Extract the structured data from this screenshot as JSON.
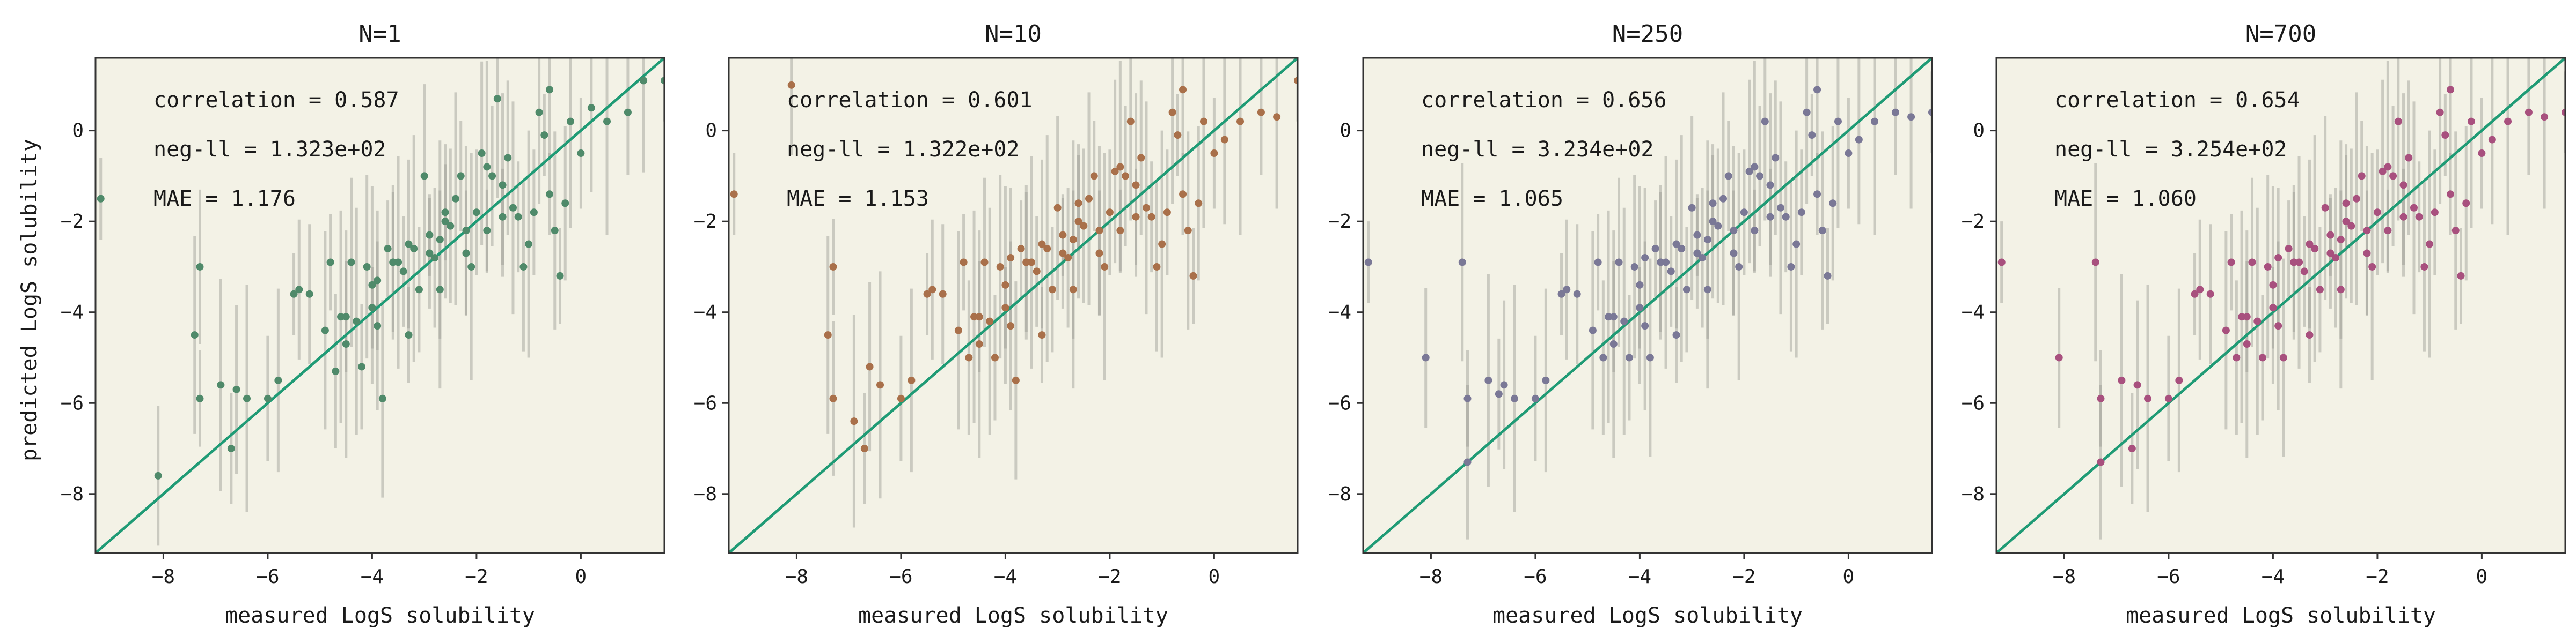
{
  "figure": {
    "ylabel": "predicted LogS solubility",
    "xlabel": "measured LogS solubility"
  },
  "chart_data": [
    {
      "type": "scatter",
      "title": "N=1",
      "xlabel": "measured LogS solubility",
      "ylabel": "predicted LogS solubility",
      "xlim": [
        -9.3,
        1.6
      ],
      "ylim": [
        -9.3,
        1.6
      ],
      "xticks": [
        -8,
        -6,
        -4,
        -2,
        0
      ],
      "yticks": [
        -8,
        -6,
        -4,
        -2,
        0
      ],
      "xtick_labels": [
        "−8",
        "−6",
        "−4",
        "−2",
        "0"
      ],
      "ytick_labels": [
        "−8",
        "−6",
        "−4",
        "−2",
        "0"
      ],
      "color": "#4f8a6a",
      "diagonal": true,
      "stats": [
        "correlation = 0.587",
        "neg-ll = 1.323e+02",
        "MAE = 1.176"
      ],
      "x": [
        -9.2,
        -8.1,
        -7.4,
        -7.3,
        -7.3,
        -6.9,
        -6.7,
        -6.6,
        -6.4,
        -6.0,
        -5.8,
        -5.5,
        -5.4,
        -4.9,
        -4.8,
        -4.7,
        -4.6,
        -4.5,
        -4.4,
        -4.3,
        -4.2,
        -4.1,
        -4.0,
        -3.9,
        -3.8,
        -3.7,
        -3.6,
        -3.5,
        -3.4,
        -3.3,
        -3.2,
        -3.1,
        -3.0,
        -2.9,
        -2.8,
        -2.7,
        -2.6,
        -2.5,
        -2.4,
        -2.3,
        -2.2,
        -2.1,
        -2.0,
        -1.9,
        -1.8,
        -1.7,
        -1.6,
        -1.5,
        -1.4,
        -1.3,
        -1.2,
        -1.1,
        -1.0,
        -0.9,
        -0.8,
        -0.7,
        -0.6,
        -0.5,
        -0.4,
        -0.3,
        -0.2,
        0.0,
        0.2,
        0.5,
        0.9,
        1.2,
        1.6,
        -5.2,
        -4.0,
        -3.3,
        -2.6,
        -1.8,
        -2.9,
        -3.9,
        -4.5,
        -2.2,
        -1.5,
        -0.6,
        -3.6,
        -2.7
      ],
      "y": [
        -1.5,
        -7.6,
        -4.5,
        -5.9,
        -3.0,
        -5.6,
        -7.0,
        -5.7,
        -5.9,
        -5.9,
        -5.5,
        -3.6,
        -3.5,
        -4.4,
        -2.9,
        -5.3,
        -4.1,
        -4.1,
        -2.9,
        -4.2,
        -5.2,
        -3.0,
        -3.9,
        -3.3,
        -5.9,
        -2.6,
        -2.9,
        -2.9,
        -3.1,
        -2.5,
        -2.6,
        -3.5,
        -1.0,
        -2.3,
        -2.8,
        -2.4,
        -1.8,
        -2.1,
        -1.5,
        -1.0,
        -2.2,
        -3.0,
        -1.8,
        -0.5,
        -2.2,
        -1.0,
        0.7,
        -1.9,
        -0.6,
        -1.7,
        -1.9,
        -3.0,
        -2.5,
        -1.8,
        0.4,
        -0.1,
        0.9,
        -2.2,
        -3.2,
        -1.6,
        0.2,
        -0.5,
        0.5,
        0.2,
        0.4,
        1.1,
        1.1,
        -3.6,
        -3.4,
        -4.5,
        -2.0,
        -0.8,
        -2.7,
        -4.3,
        -4.7,
        -2.7,
        -1.2,
        -1.4,
        -2.9,
        -3.5
      ]
    },
    {
      "type": "scatter",
      "title": "N=10",
      "xlabel": "measured LogS solubility",
      "ylabel": "",
      "xlim": [
        -9.3,
        1.6
      ],
      "ylim": [
        -9.3,
        1.6
      ],
      "xticks": [
        -8,
        -6,
        -4,
        -2,
        0
      ],
      "yticks": [
        -8,
        -6,
        -4,
        -2,
        0
      ],
      "xtick_labels": [
        "−8",
        "−6",
        "−4",
        "−2",
        "0"
      ],
      "ytick_labels": [
        "−8",
        "−6",
        "−4",
        "−2",
        "0"
      ],
      "color": "#a9704a",
      "diagonal": true,
      "stats": [
        "correlation = 0.601",
        "neg-ll = 1.322e+02",
        "MAE = 1.153"
      ],
      "x": [
        -9.2,
        -8.1,
        -7.4,
        -7.3,
        -7.3,
        -6.9,
        -6.7,
        -6.6,
        -6.4,
        -6.0,
        -5.8,
        -5.5,
        -5.4,
        -4.9,
        -4.8,
        -4.7,
        -4.6,
        -4.5,
        -4.4,
        -4.3,
        -4.2,
        -4.1,
        -4.0,
        -3.9,
        -3.8,
        -3.7,
        -3.6,
        -3.5,
        -3.4,
        -3.3,
        -3.2,
        -3.1,
        -3.0,
        -2.9,
        -2.8,
        -2.7,
        -2.6,
        -2.5,
        -2.4,
        -2.3,
        -2.2,
        -2.1,
        -2.0,
        -1.9,
        -1.8,
        -1.7,
        -1.6,
        -1.5,
        -1.4,
        -1.3,
        -1.2,
        -1.1,
        -1.0,
        -0.9,
        -0.8,
        -0.7,
        -0.6,
        -0.5,
        -0.4,
        -0.3,
        -0.2,
        0.0,
        0.2,
        0.5,
        0.9,
        1.2,
        1.6,
        -5.2,
        -4.0,
        -3.3,
        -2.6,
        -1.8,
        -2.9,
        -3.9,
        -4.5,
        -2.2,
        -1.5,
        -0.6,
        -3.6,
        -2.7
      ],
      "y": [
        -1.4,
        1.0,
        -4.5,
        -3.0,
        -5.9,
        -6.4,
        -7.0,
        -5.2,
        -5.6,
        -5.9,
        -5.5,
        -3.6,
        -3.5,
        -4.4,
        -2.9,
        -5.0,
        -4.1,
        -4.1,
        -2.9,
        -4.2,
        -5.0,
        -3.0,
        -3.9,
        -2.8,
        -5.5,
        -2.6,
        -2.9,
        -2.9,
        -3.1,
        -2.5,
        -2.6,
        -3.5,
        -1.7,
        -2.3,
        -2.8,
        -2.4,
        -1.6,
        -2.1,
        -1.5,
        -1.0,
        -2.2,
        -3.0,
        -1.8,
        -0.9,
        -2.2,
        -1.0,
        0.2,
        -1.9,
        -0.6,
        -1.7,
        -1.9,
        -3.0,
        -2.5,
        -1.8,
        0.4,
        -0.1,
        0.9,
        -2.2,
        -3.2,
        -1.6,
        0.2,
        -0.5,
        -0.2,
        0.2,
        0.4,
        0.3,
        1.1,
        -3.6,
        -3.4,
        -4.5,
        -2.0,
        -0.8,
        -2.7,
        -4.3,
        -4.7,
        -2.7,
        -1.2,
        -1.4,
        -2.9,
        -3.5
      ]
    },
    {
      "type": "scatter",
      "title": "N=250",
      "xlabel": "measured LogS solubility",
      "ylabel": "",
      "xlim": [
        -9.3,
        1.6
      ],
      "ylim": [
        -9.3,
        1.6
      ],
      "xticks": [
        -8,
        -6,
        -4,
        -2,
        0
      ],
      "yticks": [
        -8,
        -6,
        -4,
        -2,
        0
      ],
      "xtick_labels": [
        "−8",
        "−6",
        "−4",
        "−2",
        "0"
      ],
      "ytick_labels": [
        "−8",
        "−6",
        "−4",
        "−2",
        "0"
      ],
      "color": "#7a7896",
      "diagonal": true,
      "stats": [
        "correlation = 0.656",
        "neg-ll = 3.234e+02",
        "MAE = 1.065"
      ],
      "x": [
        -9.2,
        -8.1,
        -7.4,
        -7.3,
        -7.3,
        -6.9,
        -6.7,
        -6.6,
        -6.4,
        -6.0,
        -5.8,
        -5.5,
        -5.4,
        -4.9,
        -4.8,
        -4.7,
        -4.6,
        -4.5,
        -4.4,
        -4.3,
        -4.2,
        -4.1,
        -4.0,
        -3.9,
        -3.8,
        -3.7,
        -3.6,
        -3.5,
        -3.4,
        -3.3,
        -3.2,
        -3.1,
        -3.0,
        -2.9,
        -2.8,
        -2.7,
        -2.6,
        -2.5,
        -2.4,
        -2.3,
        -2.2,
        -2.1,
        -2.0,
        -1.9,
        -1.8,
        -1.7,
        -1.6,
        -1.5,
        -1.4,
        -1.3,
        -1.2,
        -1.1,
        -1.0,
        -0.9,
        -0.8,
        -0.7,
        -0.6,
        -0.5,
        -0.4,
        -0.3,
        -0.2,
        0.0,
        0.2,
        0.5,
        0.9,
        1.2,
        1.6,
        -5.2,
        -4.0,
        -3.3,
        -2.6,
        -1.8,
        -2.9,
        -3.9,
        -4.5,
        -2.2,
        -1.5,
        -0.6,
        -3.6,
        -2.7
      ],
      "y": [
        -2.9,
        -5.0,
        -2.9,
        -5.9,
        -7.3,
        -5.5,
        -5.8,
        -5.6,
        -5.9,
        -5.9,
        -5.5,
        -3.6,
        -3.5,
        -4.4,
        -2.9,
        -5.0,
        -4.1,
        -4.1,
        -2.9,
        -4.2,
        -5.0,
        -3.0,
        -3.9,
        -2.8,
        -5.0,
        -2.6,
        -2.9,
        -2.9,
        -3.1,
        -2.5,
        -2.6,
        -3.5,
        -1.7,
        -2.3,
        -2.8,
        -2.4,
        -1.6,
        -2.1,
        -1.5,
        -1.0,
        -2.2,
        -3.0,
        -1.8,
        -0.9,
        -2.2,
        -1.0,
        0.2,
        -1.9,
        -0.6,
        -1.7,
        -1.9,
        -3.0,
        -2.5,
        -1.8,
        0.4,
        -0.1,
        0.9,
        -2.2,
        -3.2,
        -1.6,
        0.2,
        -0.5,
        -0.2,
        0.2,
        0.4,
        0.3,
        0.4,
        -3.6,
        -3.4,
        -4.5,
        -2.0,
        -0.8,
        -2.7,
        -4.3,
        -4.7,
        -2.7,
        -1.2,
        -1.4,
        -2.9,
        -3.5
      ]
    },
    {
      "type": "scatter",
      "title": "N=700",
      "xlabel": "measured LogS solubility",
      "ylabel": "",
      "xlim": [
        -9.3,
        1.6
      ],
      "ylim": [
        -9.3,
        1.6
      ],
      "xticks": [
        -8,
        -6,
        -4,
        -2,
        0
      ],
      "yticks": [
        -8,
        -6,
        -4,
        -2,
        0
      ],
      "xtick_labels": [
        "−8",
        "−6",
        "−4",
        "−2",
        "0"
      ],
      "ytick_labels": [
        "−8",
        "−6",
        "−4",
        "−2",
        "0"
      ],
      "color": "#a8507e",
      "diagonal": true,
      "stats": [
        "correlation = 0.654",
        "neg-ll = 3.254e+02",
        "MAE = 1.060"
      ],
      "x": [
        -9.2,
        -8.1,
        -7.4,
        -7.3,
        -7.3,
        -6.9,
        -6.7,
        -6.6,
        -6.4,
        -6.0,
        -5.8,
        -5.5,
        -5.4,
        -4.9,
        -4.8,
        -4.7,
        -4.6,
        -4.5,
        -4.4,
        -4.3,
        -4.2,
        -4.1,
        -4.0,
        -3.9,
        -3.8,
        -3.7,
        -3.6,
        -3.5,
        -3.4,
        -3.3,
        -3.2,
        -3.1,
        -3.0,
        -2.9,
        -2.8,
        -2.7,
        -2.6,
        -2.5,
        -2.4,
        -2.3,
        -2.2,
        -2.1,
        -2.0,
        -1.9,
        -1.8,
        -1.7,
        -1.6,
        -1.5,
        -1.4,
        -1.3,
        -1.2,
        -1.1,
        -1.0,
        -0.9,
        -0.8,
        -0.7,
        -0.6,
        -0.5,
        -0.4,
        -0.3,
        -0.2,
        0.0,
        0.2,
        0.5,
        0.9,
        1.2,
        1.6,
        -5.2,
        -4.0,
        -3.3,
        -2.6,
        -1.8,
        -2.9,
        -3.9,
        -4.5,
        -2.2,
        -1.5,
        -0.6,
        -3.6,
        -2.7
      ],
      "y": [
        -2.9,
        -5.0,
        -2.9,
        -5.9,
        -7.3,
        -5.5,
        -7.0,
        -5.6,
        -5.9,
        -5.9,
        -5.5,
        -3.6,
        -3.5,
        -4.4,
        -2.9,
        -5.0,
        -4.1,
        -4.1,
        -2.9,
        -4.2,
        -5.0,
        -3.0,
        -3.9,
        -2.8,
        -5.0,
        -2.6,
        -2.9,
        -2.9,
        -3.1,
        -2.5,
        -2.6,
        -3.5,
        -1.7,
        -2.3,
        -2.8,
        -2.4,
        -1.6,
        -2.1,
        -1.5,
        -1.0,
        -2.2,
        -3.0,
        -1.8,
        -0.9,
        -2.2,
        -1.0,
        0.2,
        -1.9,
        -0.6,
        -1.7,
        -1.9,
        -3.0,
        -2.5,
        -1.8,
        0.4,
        -0.1,
        0.9,
        -2.2,
        -3.2,
        -1.6,
        0.2,
        -0.5,
        -0.2,
        0.2,
        0.4,
        0.3,
        0.4,
        -3.6,
        -3.4,
        -4.5,
        -2.0,
        -0.8,
        -2.7,
        -4.3,
        -4.7,
        -2.7,
        -1.2,
        -1.4,
        -2.9,
        -3.5
      ]
    }
  ]
}
